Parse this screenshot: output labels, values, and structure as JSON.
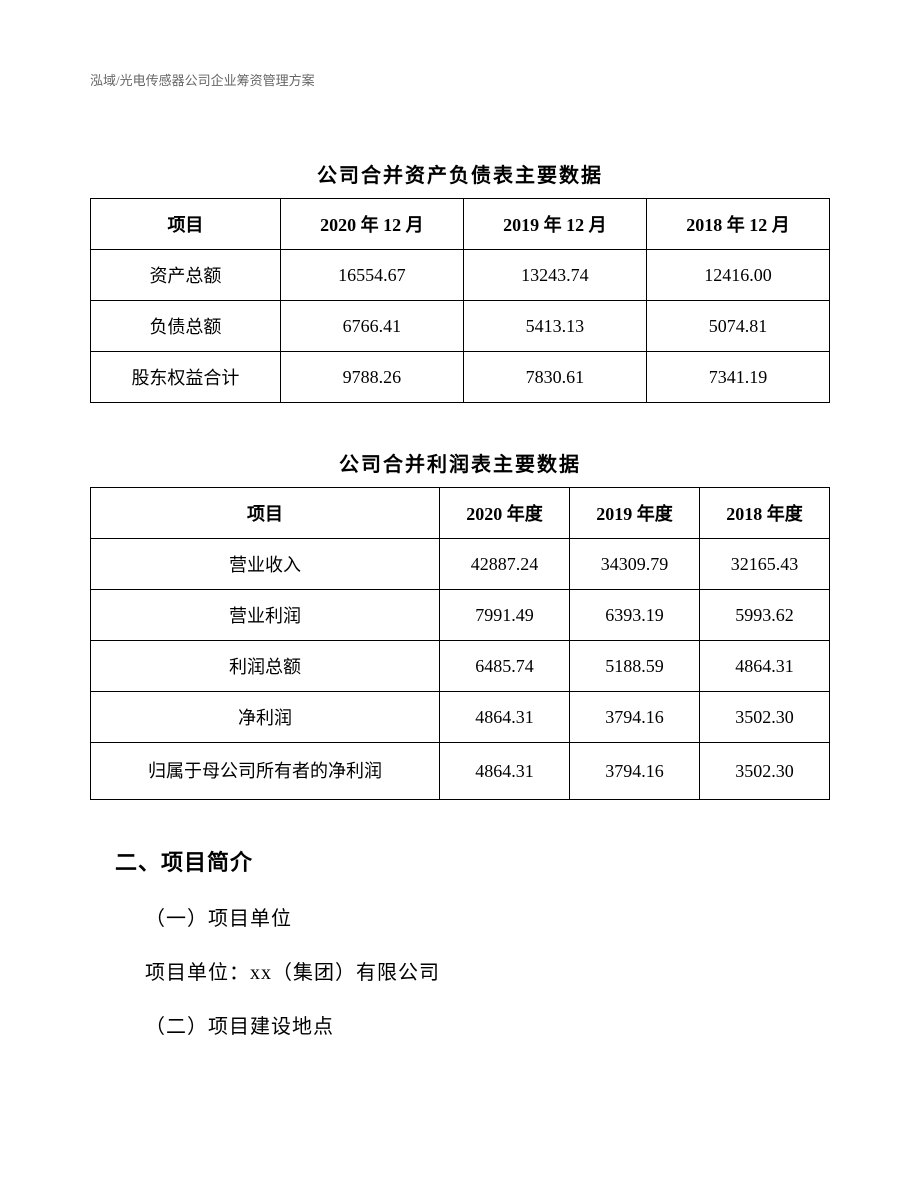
{
  "header": {
    "breadcrumb": "泓域/光电传感器公司企业筹资管理方案"
  },
  "table1": {
    "title": "公司合并资产负债表主要数据",
    "columns": [
      "项目",
      "2020 年 12 月",
      "2019 年 12 月",
      "2018 年 12 月"
    ],
    "rows": [
      [
        "资产总额",
        "16554.67",
        "13243.74",
        "12416.00"
      ],
      [
        "负债总额",
        "6766.41",
        "5413.13",
        "5074.81"
      ],
      [
        "股东权益合计",
        "9788.26",
        "7830.61",
        "7341.19"
      ]
    ]
  },
  "table2": {
    "title": "公司合并利润表主要数据",
    "columns": [
      "项目",
      "2020 年度",
      "2019 年度",
      "2018 年度"
    ],
    "rows": [
      [
        "营业收入",
        "42887.24",
        "34309.79",
        "32165.43"
      ],
      [
        "营业利润",
        "7991.49",
        "6393.19",
        "5993.62"
      ],
      [
        "利润总额",
        "6485.74",
        "5188.59",
        "4864.31"
      ],
      [
        "净利润",
        "4864.31",
        "3794.16",
        "3502.30"
      ],
      [
        "归属于母公司所有者的净利润",
        "4864.31",
        "3794.16",
        "3502.30"
      ]
    ]
  },
  "sections": {
    "heading": "二、项目简介",
    "sub1": "（一）项目单位",
    "body1": "项目单位：xx（集团）有限公司",
    "sub2": "（二）项目建设地点"
  }
}
